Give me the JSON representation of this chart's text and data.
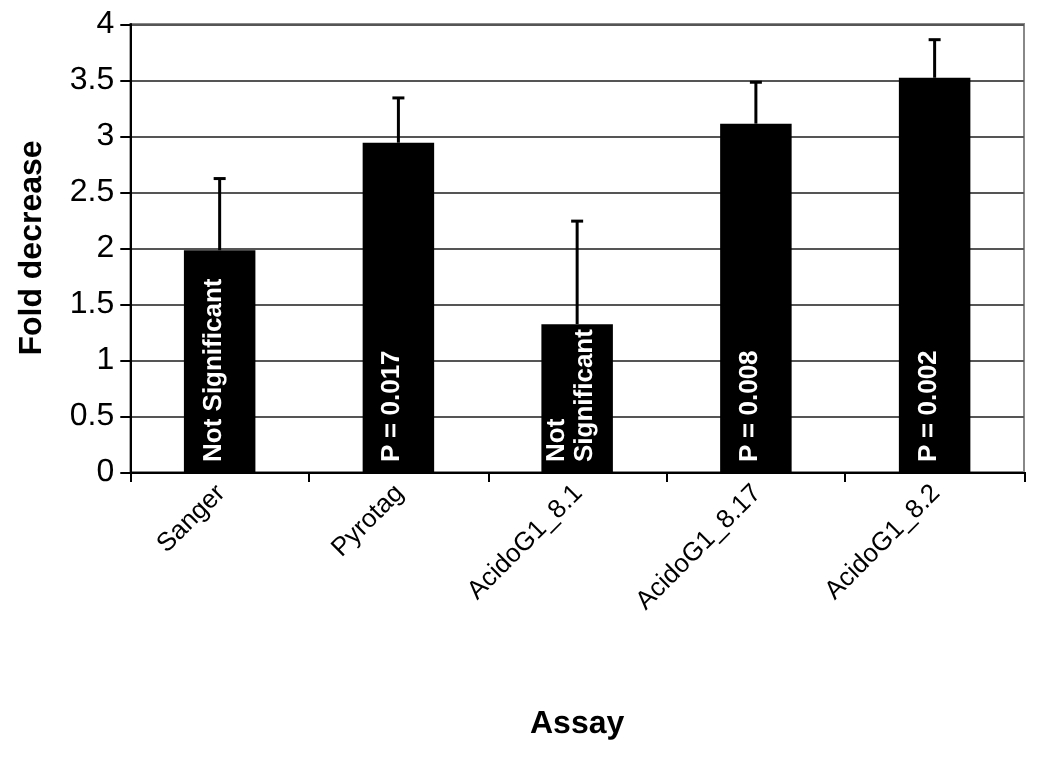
{
  "chart_data": {
    "type": "bar",
    "xlabel": "Assay",
    "ylabel": "Fold decrease",
    "categories": [
      "Sanger",
      "Pyrotag",
      "AcidoG1_8.1",
      "AcidoG1_8.17",
      "AcidoG1_8.2"
    ],
    "values": [
      1.98,
      2.94,
      1.32,
      3.11,
      3.52
    ],
    "errors": [
      [
        1.98,
        2.62
      ],
      [
        2.94,
        3.34
      ],
      [
        1.32,
        2.24
      ],
      [
        3.11,
        3.48
      ],
      [
        3.52,
        3.86
      ]
    ],
    "color": "#000000",
    "ylim": [
      0,
      4
    ],
    "yticks": [
      0,
      0.5,
      1,
      1.5,
      2,
      2.5,
      3,
      3.5,
      4
    ],
    "grid": "y",
    "annotations": [
      "Not Significant",
      "P = 0.017",
      "Not Significant",
      "P = 0.008",
      "P = 0.002"
    ]
  }
}
